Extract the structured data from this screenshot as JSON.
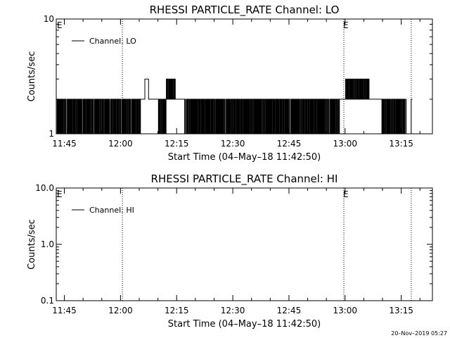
{
  "chart_data": [
    {
      "type": "line",
      "title": "RHESSI PARTICLE_RATE Channel: LO",
      "xlabel": "Start Time (04–May–18 11:42:50)",
      "ylabel": "Counts/sec",
      "y_scale": "log",
      "ylim": [
        1,
        10
      ],
      "y_ticks": [
        {
          "value": 1,
          "label": "1"
        },
        {
          "value": 10,
          "label": "10"
        }
      ],
      "x_range": [
        "11:42:50",
        "13:23:20"
      ],
      "x_ticks": [
        "11:45",
        "12:00",
        "12:15",
        "12:30",
        "12:45",
        "13:00",
        "13:15"
      ],
      "event_markers": [
        {
          "time": "11:42:50",
          "label": "E"
        },
        {
          "time": "12:00:30",
          "label": ""
        },
        {
          "time": "12:59:40",
          "label": "E"
        },
        {
          "time": "13:17:40",
          "label": ""
        }
      ],
      "legend": {
        "placement": "top-left",
        "entries": [
          "Channel: LO"
        ]
      },
      "series": [
        {
          "name": "Channel: LO",
          "segments": [
            {
              "start": "11:43:00",
              "end": "11:52:30",
              "pattern": "alternating",
              "values": [
                1,
                2
              ]
            },
            {
              "start": "11:52:30",
              "end": "11:58:20",
              "pattern": "alternating",
              "values": [
                1,
                2
              ]
            },
            {
              "start": "11:58:20",
              "end": "12:05:20",
              "pattern": "alternating",
              "values": [
                1,
                2
              ]
            },
            {
              "start": "12:05:20",
              "end": "12:06:30",
              "pattern": "constant",
              "values": [
                2
              ]
            },
            {
              "start": "12:06:30",
              "end": "12:07:30",
              "pattern": "constant",
              "values": [
                3
              ]
            },
            {
              "start": "12:07:30",
              "end": "12:10:00",
              "pattern": "constant",
              "values": [
                2
              ]
            },
            {
              "start": "12:10:00",
              "end": "12:12:10",
              "pattern": "alternating",
              "values": [
                1,
                2
              ]
            },
            {
              "start": "12:12:10",
              "end": "12:14:40",
              "pattern": "alternating",
              "values": [
                2,
                3
              ]
            },
            {
              "start": "12:14:40",
              "end": "12:17:00",
              "pattern": "constant",
              "values": [
                2
              ]
            },
            {
              "start": "12:17:00",
              "end": "12:58:30",
              "pattern": "alternating",
              "values": [
                1,
                2
              ]
            },
            {
              "start": "12:58:30",
              "end": "13:00:00",
              "pattern": "constant",
              "values": [
                2
              ]
            },
            {
              "start": "13:00:00",
              "end": "13:06:30",
              "pattern": "alternating",
              "values": [
                2,
                3
              ]
            },
            {
              "start": "13:06:30",
              "end": "13:09:50",
              "pattern": "constant",
              "values": [
                2
              ]
            },
            {
              "start": "13:09:50",
              "end": "13:16:30",
              "pattern": "alternating",
              "values": [
                1,
                2
              ]
            },
            {
              "start": "13:16:30",
              "end": "13:17:40",
              "pattern": "constant",
              "values": [
                1
              ]
            },
            {
              "start": "13:17:40",
              "end": "13:18:00",
              "pattern": "constant",
              "values": [
                2
              ]
            }
          ]
        }
      ]
    },
    {
      "type": "line",
      "title": "RHESSI PARTICLE_RATE Channel: HI",
      "xlabel": "Start Time (04–May–18 11:42:50)",
      "ylabel": "Counts/sec",
      "y_scale": "log",
      "ylim": [
        0.1,
        10
      ],
      "y_ticks": [
        {
          "value": 0.1,
          "label": "0.1"
        },
        {
          "value": 1,
          "label": "1.0"
        },
        {
          "value": 10,
          "label": "10.0"
        }
      ],
      "x_range": [
        "11:42:50",
        "13:23:20"
      ],
      "x_ticks": [
        "11:45",
        "12:00",
        "12:15",
        "12:30",
        "12:45",
        "13:00",
        "13:15"
      ],
      "event_markers": [
        {
          "time": "11:42:50",
          "label": "E"
        },
        {
          "time": "12:00:30",
          "label": ""
        },
        {
          "time": "12:59:40",
          "label": "E"
        },
        {
          "time": "13:17:40",
          "label": ""
        }
      ],
      "legend": {
        "placement": "top-left",
        "entries": [
          "Channel: HI"
        ]
      },
      "series": [
        {
          "name": "Channel: HI",
          "segments": []
        }
      ]
    }
  ],
  "footer_stamp": "20–Nov–2019 05:27"
}
